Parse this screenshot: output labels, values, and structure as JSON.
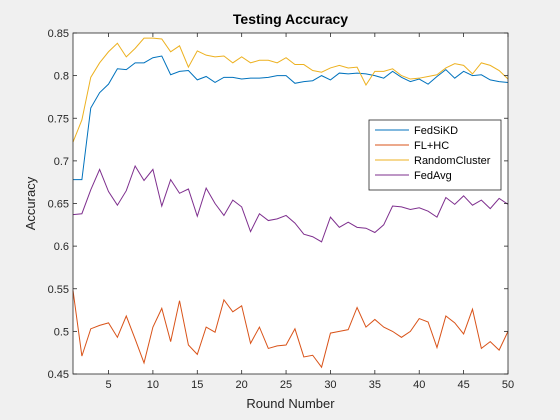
{
  "chart_data": {
    "type": "line",
    "title": "Testing Accuracy",
    "xlabel": "Round Number",
    "ylabel": "Accuracy",
    "xlim": [
      1,
      50
    ],
    "ylim": [
      0.45,
      0.85
    ],
    "xticks": [
      5,
      10,
      15,
      20,
      25,
      30,
      35,
      40,
      45,
      50
    ],
    "yticks": [
      0.45,
      0.5,
      0.55,
      0.6,
      0.65,
      0.7,
      0.75,
      0.8,
      0.85
    ],
    "grid": false,
    "legend_position": "center-right",
    "x": [
      1,
      2,
      3,
      4,
      5,
      6,
      7,
      8,
      9,
      10,
      11,
      12,
      13,
      14,
      15,
      16,
      17,
      18,
      19,
      20,
      21,
      22,
      23,
      24,
      25,
      26,
      27,
      28,
      29,
      30,
      31,
      32,
      33,
      34,
      35,
      36,
      37,
      38,
      39,
      40,
      41,
      42,
      43,
      44,
      45,
      46,
      47,
      48,
      49,
      50
    ],
    "series": [
      {
        "name": "FedSiKD",
        "color": "#0072BD",
        "values": [
          0.678,
          0.678,
          0.762,
          0.78,
          0.79,
          0.808,
          0.807,
          0.815,
          0.815,
          0.821,
          0.823,
          0.801,
          0.805,
          0.806,
          0.795,
          0.799,
          0.792,
          0.798,
          0.798,
          0.796,
          0.797,
          0.797,
          0.798,
          0.8,
          0.8,
          0.791,
          0.793,
          0.794,
          0.8,
          0.795,
          0.803,
          0.802,
          0.803,
          0.802,
          0.8,
          0.797,
          0.805,
          0.798,
          0.793,
          0.796,
          0.79,
          0.799,
          0.807,
          0.797,
          0.805,
          0.8,
          0.801,
          0.795,
          0.793,
          0.792
        ]
      },
      {
        "name": "FL+HC",
        "color": "#D95319",
        "values": [
          0.548,
          0.471,
          0.503,
          0.507,
          0.51,
          0.493,
          0.518,
          0.491,
          0.463,
          0.505,
          0.527,
          0.488,
          0.536,
          0.484,
          0.473,
          0.505,
          0.499,
          0.537,
          0.523,
          0.53,
          0.486,
          0.505,
          0.48,
          0.483,
          0.484,
          0.503,
          0.47,
          0.472,
          0.458,
          0.498,
          0.5,
          0.502,
          0.528,
          0.505,
          0.514,
          0.505,
          0.5,
          0.493,
          0.5,
          0.515,
          0.511,
          0.481,
          0.518,
          0.51,
          0.497,
          0.526,
          0.48,
          0.488,
          0.478,
          0.5
        ]
      },
      {
        "name": "RandomCluster",
        "color": "#EDB120",
        "values": [
          0.722,
          0.748,
          0.798,
          0.815,
          0.828,
          0.838,
          0.822,
          0.832,
          0.844,
          0.844,
          0.843,
          0.828,
          0.835,
          0.81,
          0.829,
          0.824,
          0.822,
          0.823,
          0.815,
          0.822,
          0.815,
          0.818,
          0.818,
          0.815,
          0.821,
          0.813,
          0.813,
          0.806,
          0.804,
          0.809,
          0.812,
          0.809,
          0.81,
          0.789,
          0.805,
          0.805,
          0.808,
          0.8,
          0.796,
          0.797,
          0.799,
          0.801,
          0.809,
          0.814,
          0.812,
          0.802,
          0.815,
          0.812,
          0.806,
          0.796
        ]
      },
      {
        "name": "FedAvg",
        "color": "#7E2F8E",
        "values": [
          0.637,
          0.638,
          0.666,
          0.69,
          0.664,
          0.648,
          0.665,
          0.694,
          0.677,
          0.69,
          0.647,
          0.678,
          0.662,
          0.667,
          0.635,
          0.668,
          0.65,
          0.636,
          0.654,
          0.646,
          0.617,
          0.638,
          0.63,
          0.632,
          0.636,
          0.627,
          0.614,
          0.611,
          0.605,
          0.634,
          0.622,
          0.628,
          0.622,
          0.621,
          0.616,
          0.625,
          0.647,
          0.646,
          0.643,
          0.645,
          0.641,
          0.634,
          0.657,
          0.649,
          0.659,
          0.648,
          0.654,
          0.644,
          0.656,
          0.649
        ]
      }
    ]
  }
}
